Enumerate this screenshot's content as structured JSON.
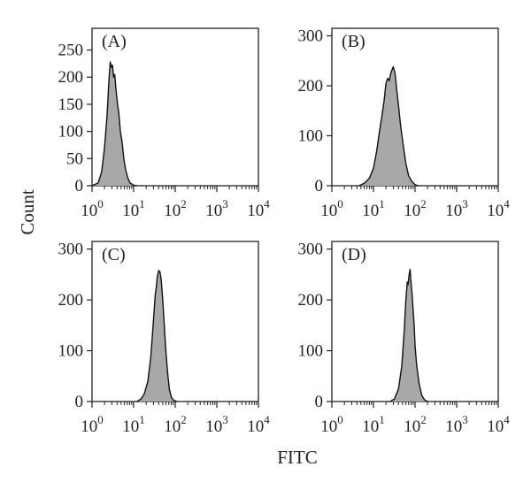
{
  "figure": {
    "ylabel": "Count",
    "xlabel": "FITC"
  },
  "chart_data": [
    {
      "type": "area",
      "panel": "(A)",
      "xscale": "log",
      "xlim": [
        1,
        10000
      ],
      "ylim": [
        0,
        290
      ],
      "yticks": [
        0,
        50,
        100,
        150,
        200,
        250
      ],
      "xticks": [
        1,
        10,
        100,
        1000,
        10000
      ],
      "xtick_labels": [
        "10^0",
        "10^1",
        "10^2",
        "10^3",
        "10^4"
      ],
      "fill_color": "#a8a8a8",
      "series": [
        {
          "x": [
            1.0,
            1.4,
            1.7,
            2.0,
            2.3,
            2.55,
            2.75,
            2.95,
            3.1,
            3.3,
            3.5,
            3.8,
            4.1,
            4.4,
            4.8,
            5.3,
            5.8,
            6.4,
            7.2,
            8.2,
            10,
            12
          ],
          "values": [
            0,
            5,
            25,
            70,
            130,
            195,
            228,
            218,
            222,
            200,
            205,
            175,
            150,
            135,
            100,
            80,
            50,
            30,
            15,
            5,
            1,
            0
          ]
        }
      ]
    },
    {
      "type": "area",
      "panel": "(B)",
      "xscale": "log",
      "xlim": [
        1,
        10000
      ],
      "ylim": [
        0,
        315
      ],
      "yticks": [
        0,
        100,
        200,
        300
      ],
      "xticks": [
        1,
        10,
        100,
        1000,
        10000
      ],
      "xtick_labels": [
        "10^0",
        "10^1",
        "10^2",
        "10^3",
        "10^4"
      ],
      "fill_color": "#a8a8a8",
      "series": [
        {
          "x": [
            4.5,
            6,
            8,
            10,
            12,
            14,
            16,
            18,
            20,
            22,
            24,
            26,
            28,
            30,
            33,
            36,
            40,
            45,
            52,
            60,
            70,
            85,
            100,
            120
          ],
          "values": [
            0,
            5,
            15,
            35,
            70,
            110,
            140,
            170,
            205,
            215,
            210,
            225,
            232,
            238,
            225,
            195,
            160,
            120,
            80,
            45,
            20,
            8,
            2,
            0
          ]
        }
      ]
    },
    {
      "type": "area",
      "panel": "(C)",
      "xscale": "log",
      "xlim": [
        1,
        10000
      ],
      "ylim": [
        0,
        315
      ],
      "yticks": [
        0,
        100,
        200,
        300
      ],
      "xticks": [
        1,
        10,
        100,
        1000,
        10000
      ],
      "xtick_labels": [
        "10^0",
        "10^1",
        "10^2",
        "10^3",
        "10^4"
      ],
      "fill_color": "#a8a8a8",
      "series": [
        {
          "x": [
            12,
            15,
            18,
            22,
            26,
            30,
            33,
            35,
            37,
            40,
            43,
            46,
            50,
            55,
            60,
            66,
            72,
            80,
            90,
            110
          ],
          "values": [
            0,
            5,
            15,
            40,
            90,
            160,
            210,
            225,
            245,
            258,
            255,
            240,
            200,
            145,
            95,
            55,
            25,
            10,
            3,
            0
          ]
        }
      ]
    },
    {
      "type": "area",
      "panel": "(D)",
      "xscale": "log",
      "xlim": [
        1,
        10000
      ],
      "ylim": [
        0,
        315
      ],
      "yticks": [
        0,
        100,
        200,
        300
      ],
      "xticks": [
        1,
        10,
        100,
        1000,
        10000
      ],
      "xtick_labels": [
        "10^0",
        "10^1",
        "10^2",
        "10^3",
        "10^4"
      ],
      "fill_color": "#a8a8a8",
      "series": [
        {
          "x": [
            25,
            32,
            40,
            48,
            55,
            60,
            65,
            68,
            72,
            76,
            80,
            85,
            90,
            95,
            100,
            110,
            125,
            145,
            170,
            200
          ],
          "values": [
            0,
            5,
            25,
            70,
            140,
            200,
            235,
            230,
            250,
            260,
            235,
            210,
            180,
            150,
            110,
            70,
            35,
            12,
            3,
            0
          ]
        }
      ]
    }
  ]
}
